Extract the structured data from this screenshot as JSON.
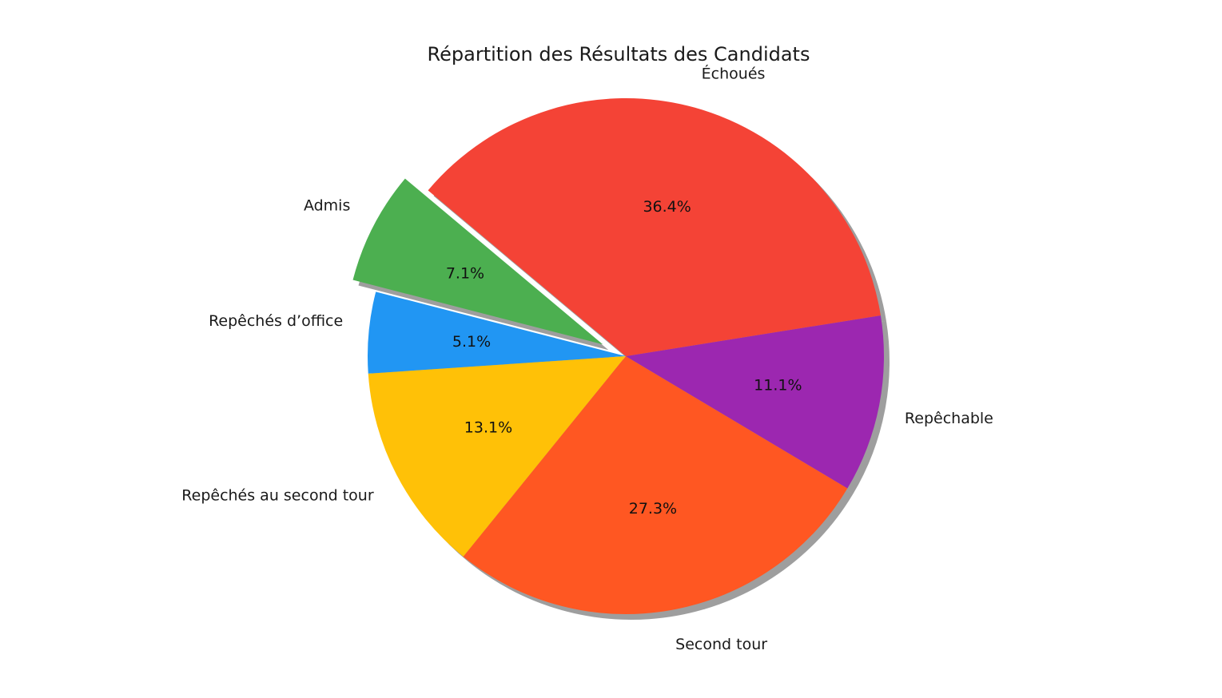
{
  "chart_data": {
    "type": "pie",
    "title": "Répartition des Résultats des Candidats",
    "shadow": true,
    "start_angle_deg": 140,
    "slices": [
      {
        "label": "Admis",
        "value": 7.1,
        "pct_label": "7.1%",
        "color": "#4CAF50",
        "exploded": true
      },
      {
        "label": "Repêchés d’office",
        "value": 5.1,
        "pct_label": "5.1%",
        "color": "#2196F3",
        "exploded": false
      },
      {
        "label": "Repêchés au second tour",
        "value": 13.1,
        "pct_label": "13.1%",
        "color": "#FFC107",
        "exploded": false
      },
      {
        "label": "Second tour",
        "value": 27.3,
        "pct_label": "27.3%",
        "color": "#FF5722",
        "exploded": false
      },
      {
        "label": "Repêchable",
        "value": 11.1,
        "pct_label": "11.1%",
        "color": "#9C27B0",
        "exploded": false
      },
      {
        "label": "Échoués",
        "value": 36.4,
        "pct_label": "36.4%",
        "color": "#F44336",
        "exploded": false
      }
    ]
  }
}
